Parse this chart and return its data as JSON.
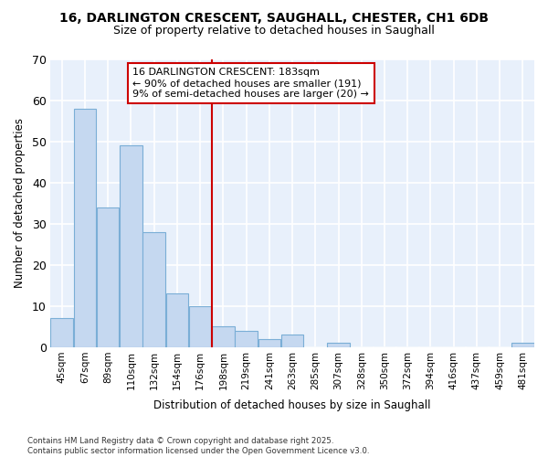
{
  "title_line1": "16, DARLINGTON CRESCENT, SAUGHALL, CHESTER, CH1 6DB",
  "title_line2": "Size of property relative to detached houses in Saughall",
  "xlabel": "Distribution of detached houses by size in Saughall",
  "ylabel": "Number of detached properties",
  "categories": [
    "45sqm",
    "67sqm",
    "89sqm",
    "110sqm",
    "132sqm",
    "154sqm",
    "176sqm",
    "198sqm",
    "219sqm",
    "241sqm",
    "263sqm",
    "285sqm",
    "307sqm",
    "328sqm",
    "350sqm",
    "372sqm",
    "394sqm",
    "416sqm",
    "437sqm",
    "459sqm",
    "481sqm"
  ],
  "values": [
    7,
    58,
    34,
    49,
    28,
    13,
    10,
    5,
    4,
    2,
    3,
    0,
    1,
    0,
    0,
    0,
    0,
    0,
    0,
    0,
    1
  ],
  "bar_color": "#c5d8f0",
  "bar_edge_color": "#7aaed6",
  "plot_bg_color": "#e8f0fb",
  "fig_bg_color": "#ffffff",
  "grid_color": "#ffffff",
  "vline_x_index": 7,
  "vline_color": "#cc0000",
  "annotation_text": "16 DARLINGTON CRESCENT: 183sqm\n← 90% of detached houses are smaller (191)\n9% of semi-detached houses are larger (20) →",
  "annotation_box_facecolor": "#ffffff",
  "annotation_box_edgecolor": "#cc0000",
  "ylim": [
    0,
    70
  ],
  "yticks": [
    0,
    10,
    20,
    30,
    40,
    50,
    60,
    70
  ],
  "footer": "Contains HM Land Registry data © Crown copyright and database right 2025.\nContains public sector information licensed under the Open Government Licence v3.0."
}
